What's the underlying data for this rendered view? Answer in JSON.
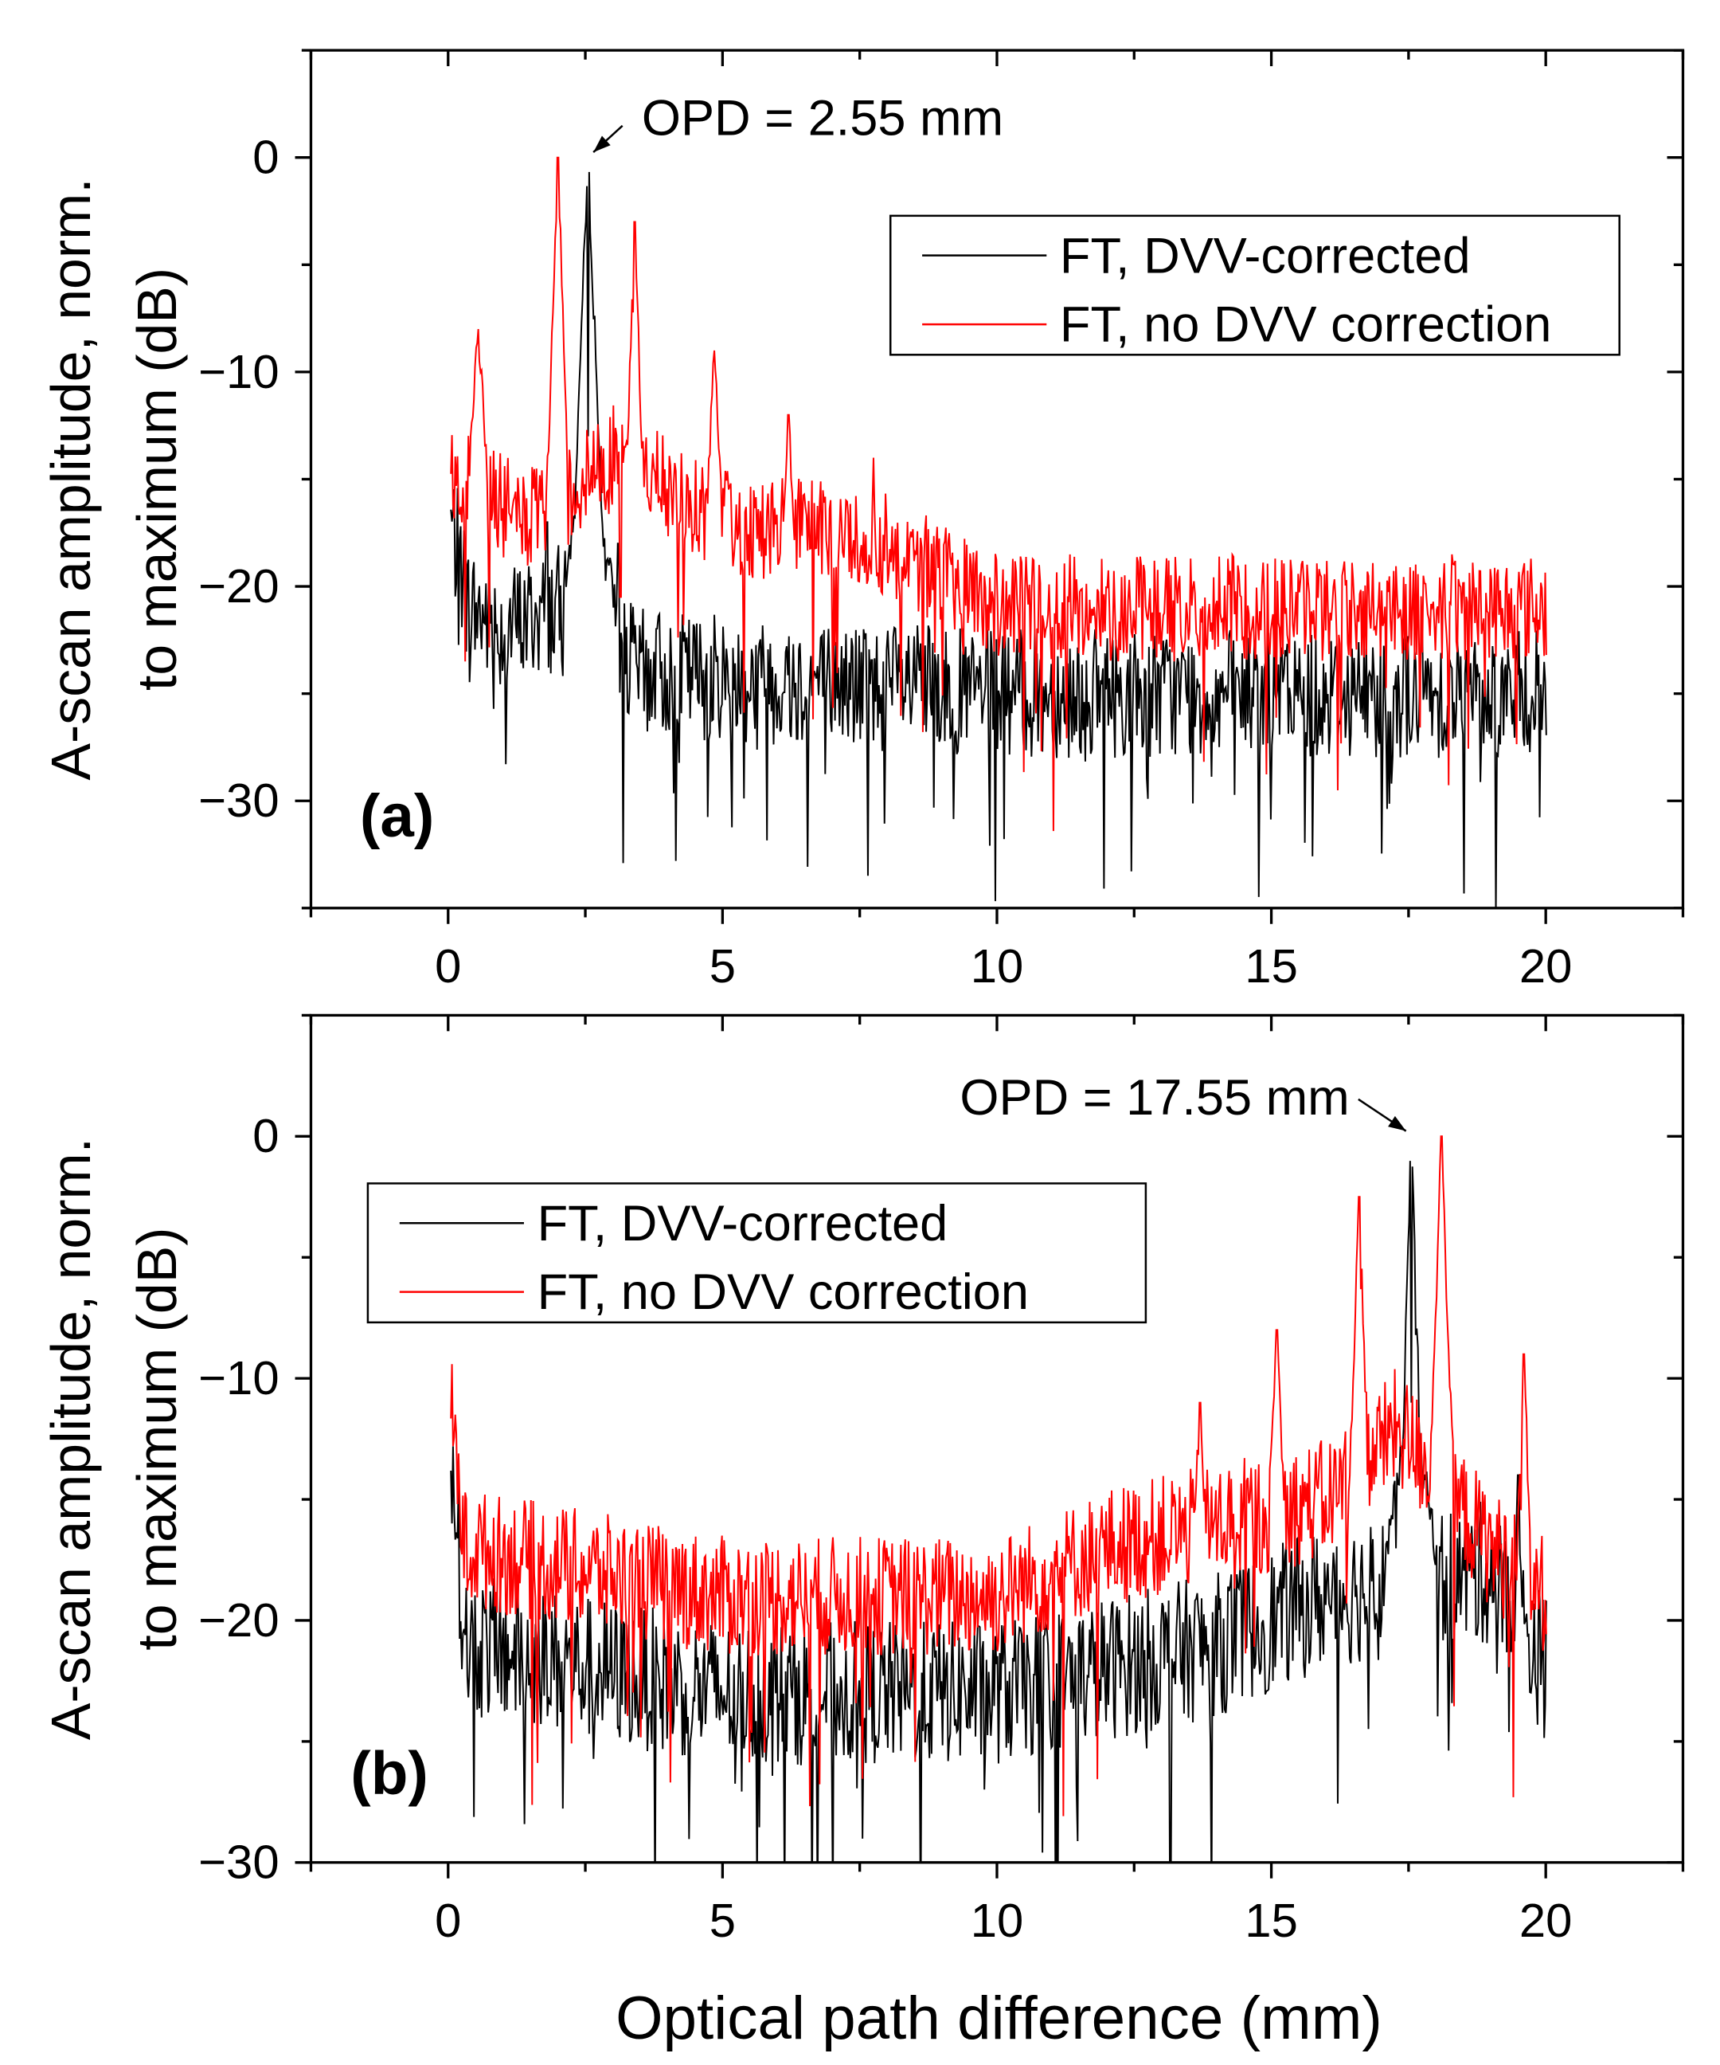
{
  "chart_data": [
    {
      "type": "line",
      "panel_label": "(a)",
      "xlabel": "",
      "ylabel_line1": "A-scan amplitude, norm.",
      "ylabel_line2": "to maximum (dB)",
      "xlim": [
        -2.5,
        22.5
      ],
      "ylim": [
        -35,
        5
      ],
      "xticks": [
        0,
        5,
        10,
        15,
        20
      ],
      "xtick_labels": [
        "0",
        "5",
        "10",
        "15",
        "20"
      ],
      "yticks": [
        0,
        -10,
        -20,
        -30
      ],
      "ytick_labels": [
        "0",
        "−10",
        "−20",
        "−30"
      ],
      "legend_position": "top-right",
      "annotation": {
        "text": "OPD = 2.55 mm",
        "x": 2.55,
        "y": 0
      },
      "series": [
        {
          "name": "FT, DVV-corrected",
          "color": "#000000",
          "baseline": [
            [
              0.05,
              -17
            ],
            [
              0.4,
              -21
            ],
            [
              1.0,
              -22
            ],
            [
              2.0,
              -21
            ],
            [
              3.5,
              -24
            ],
            [
              10,
              -25
            ],
            [
              20,
              -25
            ]
          ],
          "peaks": [
            [
              2.55,
              0,
              0.12
            ],
            [
              2.55,
              -13,
              0.5
            ],
            [
              3.1,
              -18,
              0.05
            ],
            [
              1.8,
              -17,
              0.05
            ]
          ],
          "noise": 3
        },
        {
          "name": "FT, no DVV correction",
          "color": "#ff0000",
          "baseline": [
            [
              0.05,
              -15
            ],
            [
              1.5,
              -17
            ],
            [
              3.0,
              -14
            ],
            [
              5,
              -17
            ],
            [
              8,
              -18
            ],
            [
              10,
              -21
            ],
            [
              20,
              -21
            ]
          ],
          "peaks": [
            [
              0.55,
              -8,
              0.2
            ],
            [
              2.0,
              0,
              0.1
            ],
            [
              3.4,
              -3,
              0.1
            ],
            [
              4.85,
              -9,
              0.15
            ],
            [
              6.2,
              -12,
              0.15
            ],
            [
              7.75,
              -14,
              0.05
            ]
          ],
          "noise": 2.5
        }
      ]
    },
    {
      "type": "line",
      "panel_label": "(b)",
      "xlabel": "Optical path difference (mm)",
      "ylabel_line1": "A-scan amplitude, norm.",
      "ylabel_line2": "to maximum (dB)",
      "xlim": [
        -2.5,
        22.5
      ],
      "ylim": [
        -30,
        5
      ],
      "xticks": [
        0,
        5,
        10,
        15,
        20
      ],
      "xtick_labels": [
        "0",
        "5",
        "10",
        "15",
        "20"
      ],
      "yticks": [
        0,
        -10,
        -20,
        -30
      ],
      "ytick_labels": [
        "0",
        "−10",
        "−20",
        "−30"
      ],
      "legend_position": "top-left",
      "annotation": {
        "text": "OPD = 17.55 mm",
        "x": 17.55,
        "y": 0
      },
      "series": [
        {
          "name": "FT, DVV-corrected",
          "color": "#000000",
          "baseline": [
            [
              0.05,
              -12
            ],
            [
              0.3,
              -21
            ],
            [
              5,
              -23
            ],
            [
              10,
              -23
            ],
            [
              14,
              -21
            ],
            [
              16,
              -19
            ],
            [
              19,
              -18
            ],
            [
              20,
              -22
            ]
          ],
          "peaks": [
            [
              17.55,
              0,
              0.1
            ],
            [
              17.55,
              -11,
              0.6
            ],
            [
              19.5,
              -14,
              0.1
            ]
          ],
          "noise": 3
        },
        {
          "name": "FT, no DVV correction",
          "color": "#ff0000",
          "baseline": [
            [
              0.05,
              -11
            ],
            [
              0.3,
              -17
            ],
            [
              5,
              -19
            ],
            [
              10,
              -19
            ],
            [
              12,
              -17
            ],
            [
              16,
              -15
            ],
            [
              17.3,
              -12
            ],
            [
              19,
              -17
            ],
            [
              20,
              -19
            ]
          ],
          "peaks": [
            [
              13.7,
              -11,
              0.15
            ],
            [
              15.1,
              -8,
              0.15
            ],
            [
              16.6,
              -2.5,
              0.12
            ],
            [
              18.1,
              0,
              0.12
            ],
            [
              19.6,
              -9,
              0.12
            ]
          ],
          "noise": 2.5
        }
      ]
    }
  ]
}
